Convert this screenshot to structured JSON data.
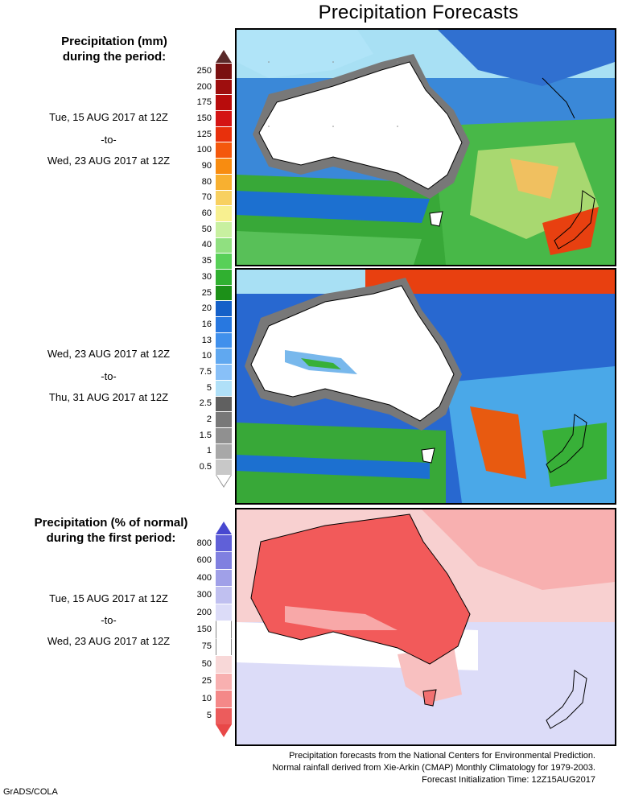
{
  "title": "Precipitation Forecasts",
  "amount_legend": {
    "heading_line1": "Precipitation (mm)",
    "heading_line2": "during the period:"
  },
  "period1": {
    "start": "Tue, 15 AUG 2017 at 12Z",
    "sep": "-to-",
    "end": "Wed, 23 AUG 2017 at 12Z"
  },
  "period2": {
    "start": "Wed, 23 AUG 2017 at 12Z",
    "sep": "-to-",
    "end": "Thu, 31 AUG 2017 at 12Z"
  },
  "amount_scale": {
    "levels": [
      "250",
      "200",
      "175",
      "150",
      "125",
      "100",
      "90",
      "80",
      "70",
      "60",
      "50",
      "40",
      "35",
      "30",
      "25",
      "20",
      "16",
      "13",
      "10",
      "7.5",
      "5",
      "2.5",
      "2",
      "1.5",
      "1",
      "0.5"
    ],
    "colors": [
      "#7a1010",
      "#9e0e0e",
      "#b80c0c",
      "#d41414",
      "#e8300c",
      "#f4580c",
      "#f88c10",
      "#f8b030",
      "#f8d060",
      "#f8f090",
      "#c8f0a0",
      "#90e080",
      "#58d058",
      "#30b030",
      "#1c9018",
      "#1460c8",
      "#2878e0",
      "#4090ec",
      "#60a8f0",
      "#88c0f8",
      "#b0e0f8",
      "#606060",
      "#787878",
      "#909090",
      "#a8a8a8",
      "#c8c8c8"
    ],
    "top_arrow_color": "#5a2a2a"
  },
  "percent_legend": {
    "heading_line1": "Precipitation (% of normal)",
    "heading_line2": "during the first period:"
  },
  "period3": {
    "start": "Tue, 15 AUG 2017 at 12Z",
    "sep": "-to-",
    "end": "Wed, 23 AUG 2017 at 12Z"
  },
  "percent_scale": {
    "levels": [
      "800",
      "600",
      "400",
      "300",
      "200",
      "150",
      "75",
      "50",
      "25",
      "10",
      "5"
    ],
    "colors": [
      "#6060d8",
      "#8080e0",
      "#a0a0e8",
      "#c0c0f0",
      "#dcdcf8",
      "#ffffff",
      "#ffffff",
      "#f8d8d8",
      "#f8b0b0",
      "#f48888",
      "#ec5c5c"
    ],
    "top_arrow_color": "#4848d0",
    "bottom_arrow_color": "#e84848"
  },
  "footer": {
    "line1": "Precipitation forecasts from the National Centers for Environmental Prediction.",
    "line2": "Normal rainfall derived from Xie-Arkin (CMAP) Monthly Climatology for 1979-2003.",
    "line3": "Forecast Initialization Time: 12Z15AUG2017"
  },
  "credit": "GrADS/COLA"
}
